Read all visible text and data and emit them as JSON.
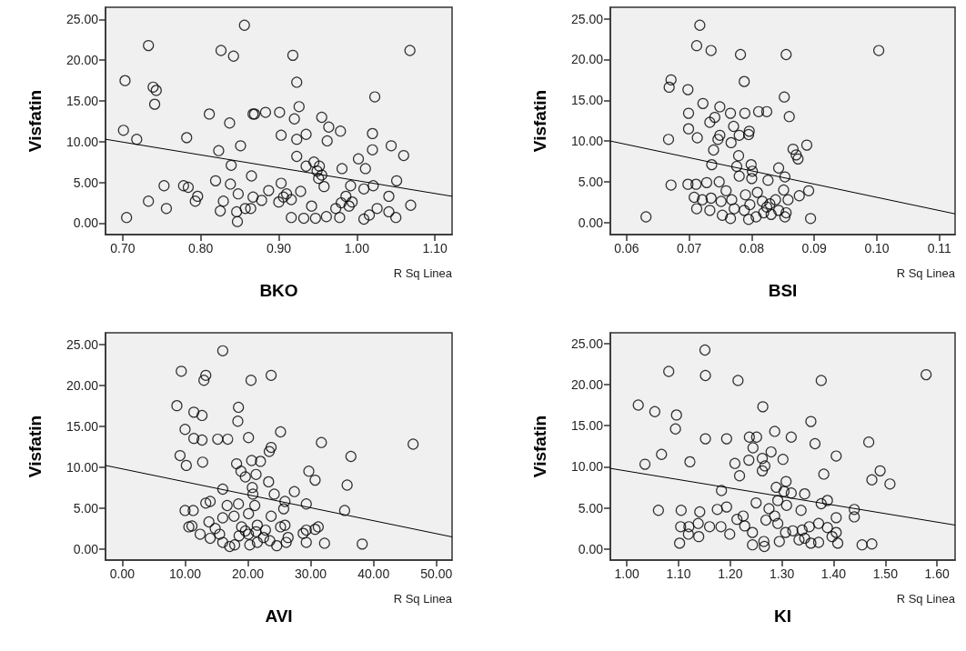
{
  "chart_data": [
    {
      "type": "scatter",
      "xlabel": "BKO",
      "ylabel": "Visfatin",
      "xlim": [
        0.678,
        1.122
      ],
      "ylim": [
        -1.4,
        26.5
      ],
      "marker": "circle",
      "grid": false,
      "annotations": [
        "R Sq Linea"
      ],
      "xticks": [
        {
          "value": 0.7,
          "label": "0.70"
        },
        {
          "value": 0.8,
          "label": "0.80"
        },
        {
          "value": 0.9,
          "label": "0.90"
        },
        {
          "value": 1.0,
          "label": "1.00"
        },
        {
          "value": 1.1,
          "label": "1.10"
        }
      ],
      "yticks": [
        {
          "value": 0,
          "label": "0.00"
        },
        {
          "value": 5,
          "label": "5.00"
        },
        {
          "value": 10,
          "label": "10.00"
        },
        {
          "value": 15,
          "label": "15.00"
        },
        {
          "value": 20,
          "label": "20.00"
        },
        {
          "value": 25,
          "label": "25.00"
        }
      ],
      "series": [
        {
          "color": "#000000",
          "x": [
            0.856,
            0.733,
            0.826,
            0.842,
            0.918,
            1.068,
            0.703,
            0.739,
            0.743,
            0.741,
            0.923,
            1.023,
            0.926,
            0.811,
            0.867,
            0.869,
            0.883,
            0.901,
            0.92,
            0.837,
            0.955,
            0.964,
            0.979,
            0.701,
            0.718,
            0.782,
            0.903,
            0.923,
            0.935,
            0.962,
            1.02,
            1.02,
            1.044,
            1.06,
            0.823,
            0.851,
            0.923,
            0.839,
            0.935,
            0.945,
            0.952,
            0.949,
            0.955,
            0.951,
            0.981,
            1.002,
            1.011,
            0.865,
            0.753,
            0.778,
            0.784,
            0.796,
            0.819,
            0.838,
            0.903,
            0.958,
            0.992,
            1.021,
            1.051,
            0.733,
            0.756,
            0.705,
            0.793,
            0.829,
            0.848,
            0.867,
            0.878,
            0.887,
            0.825,
            0.846,
            0.847,
            0.857,
            0.864,
            0.9,
            0.91,
            0.916,
            0.928,
            0.916,
            0.932,
            0.942,
            0.947,
            0.961,
            0.973,
            0.978,
            0.986,
            0.994,
            0.99,
            1.009,
            1.009,
            1.016,
            1.026,
            1.041,
            1.041,
            1.05,
            1.069,
            0.906,
            0.98
          ],
          "values": [
            24.3,
            21.8,
            21.2,
            20.5,
            20.6,
            21.2,
            17.5,
            16.7,
            16.3,
            14.6,
            17.3,
            15.5,
            14.3,
            13.4,
            13.4,
            13.4,
            13.6,
            13.6,
            12.8,
            12.3,
            13.0,
            11.8,
            11.3,
            11.4,
            10.3,
            10.5,
            10.8,
            10.3,
            10.9,
            10.1,
            11.0,
            9.0,
            9.5,
            8.3,
            8.9,
            9.5,
            8.2,
            7.1,
            7.0,
            7.5,
            7.0,
            6.4,
            5.9,
            5.5,
            6.7,
            7.9,
            6.7,
            5.8,
            4.6,
            4.6,
            4.4,
            3.3,
            5.2,
            4.8,
            4.9,
            4.5,
            4.6,
            4.6,
            5.2,
            2.7,
            1.8,
            0.7,
            2.7,
            2.7,
            3.6,
            3.2,
            2.8,
            4.0,
            1.5,
            1.4,
            0.2,
            1.8,
            1.8,
            2.6,
            3.6,
            2.9,
            3.9,
            0.7,
            0.6,
            2.1,
            0.6,
            0.8,
            1.8,
            0.7,
            3.3,
            2.6,
            2.1,
            0.5,
            4.2,
            1.0,
            1.8,
            3.3,
            1.4,
            0.7,
            2.2,
            3.2,
            2.5
          ]
        },
        {
          "type": "line",
          "color": "#000000",
          "marker": "none",
          "x": [
            0.678,
            1.122
          ],
          "values": [
            10.3,
            3.3
          ]
        }
      ]
    },
    {
      "type": "scatter",
      "xlabel": "BSI",
      "ylabel": "Visfatin",
      "xlim": [
        0.0574,
        0.1125
      ],
      "ylim": [
        -1.47,
        26.4
      ],
      "marker": "circle",
      "grid": false,
      "annotations": [
        "R Sq Linea"
      ],
      "xticks": [
        {
          "value": 0.06,
          "label": "0.06"
        },
        {
          "value": 0.07,
          "label": "0.07"
        },
        {
          "value": 0.08,
          "label": "0.08"
        },
        {
          "value": 0.09,
          "label": "0.09"
        },
        {
          "value": 0.1,
          "label": "0.10"
        },
        {
          "value": 0.11,
          "label": "0.11"
        }
      ],
      "yticks": [
        {
          "value": 0,
          "label": "0.00"
        },
        {
          "value": 5,
          "label": "5.00"
        },
        {
          "value": 10,
          "label": "10.00"
        },
        {
          "value": 15,
          "label": "15.00"
        },
        {
          "value": 20,
          "label": "20.00"
        },
        {
          "value": 25,
          "label": "25.00"
        }
      ],
      "series": [
        {
          "color": "#000000",
          "x": [
            0.0717,
            0.0712,
            0.0735,
            0.0782,
            0.0855,
            0.1003,
            0.0671,
            0.0668,
            0.0698,
            0.0722,
            0.0749,
            0.0788,
            0.0852,
            0.086,
            0.0699,
            0.0766,
            0.0789,
            0.0811,
            0.0824,
            0.0741,
            0.0733,
            0.0771,
            0.0699,
            0.0713,
            0.0667,
            0.0749,
            0.0746,
            0.078,
            0.0796,
            0.0795,
            0.0767,
            0.0739,
            0.0866,
            0.0888,
            0.0871,
            0.0874,
            0.0779,
            0.0736,
            0.0776,
            0.0799,
            0.0801,
            0.0843,
            0.0671,
            0.0698,
            0.0711,
            0.0728,
            0.0748,
            0.078,
            0.08,
            0.0826,
            0.0853,
            0.0851,
            0.0876,
            0.0891,
            0.0708,
            0.0721,
            0.0735,
            0.0751,
            0.0759,
            0.0768,
            0.079,
            0.0809,
            0.0817,
            0.0829,
            0.0838,
            0.0858,
            0.0712,
            0.0733,
            0.0753,
            0.0766,
            0.0772,
            0.0788,
            0.0795,
            0.0807,
            0.0819,
            0.0831,
            0.0843,
            0.0853,
            0.0855,
            0.0631,
            0.0894,
            0.0797,
            0.0824
          ],
          "values": [
            24.2,
            21.7,
            21.1,
            20.6,
            20.6,
            21.1,
            17.5,
            16.6,
            16.3,
            14.6,
            14.2,
            17.3,
            15.4,
            13.0,
            13.4,
            13.4,
            13.4,
            13.6,
            13.6,
            12.9,
            12.3,
            11.8,
            11.5,
            10.4,
            10.2,
            10.7,
            10.2,
            10.7,
            11.2,
            10.8,
            9.8,
            8.9,
            9.0,
            9.5,
            8.3,
            7.8,
            8.2,
            7.1,
            6.9,
            7.1,
            6.3,
            6.7,
            4.6,
            4.7,
            4.7,
            4.9,
            5.0,
            5.7,
            5.4,
            5.2,
            5.6,
            4.0,
            3.3,
            3.9,
            3.1,
            2.8,
            3.0,
            2.6,
            3.9,
            2.8,
            3.4,
            3.7,
            2.6,
            2.3,
            2.8,
            2.8,
            1.7,
            1.5,
            0.9,
            0.5,
            1.7,
            1.5,
            0.4,
            0.7,
            1.2,
            1.0,
            1.5,
            0.7,
            1.2,
            0.7,
            0.5,
            2.2,
            1.9
          ]
        },
        {
          "type": "line",
          "color": "#000000",
          "marker": "none",
          "x": [
            0.0574,
            0.1125
          ],
          "values": [
            10.0,
            1.07
          ]
        }
      ]
    },
    {
      "type": "scatter",
      "xlabel": "AVI",
      "ylabel": "Visfatin",
      "xlim": [
        -2.66,
        52.5
      ],
      "ylim": [
        -1.36,
        26.4
      ],
      "marker": "circle",
      "grid": false,
      "annotations": [
        "R Sq Linea"
      ],
      "xticks": [
        {
          "value": 0,
          "label": "0.00"
        },
        {
          "value": 10,
          "label": "10.00"
        },
        {
          "value": 20,
          "label": "20.00"
        },
        {
          "value": 30,
          "label": "30.00"
        },
        {
          "value": 40,
          "label": "40.00"
        },
        {
          "value": 50,
          "label": "50.00"
        }
      ],
      "yticks": [
        {
          "value": 0,
          "label": "0.00"
        },
        {
          "value": 5,
          "label": "5.00"
        },
        {
          "value": 10,
          "label": "10.00"
        },
        {
          "value": 15,
          "label": "15.00"
        },
        {
          "value": 20,
          "label": "20.00"
        },
        {
          "value": 25,
          "label": "25.00"
        }
      ],
      "series": [
        {
          "color": "#000000",
          "x": [
            16.0,
            9.4,
            13.3,
            13.0,
            20.5,
            23.7,
            8.7,
            11.4,
            12.7,
            18.5,
            18.4,
            10.0,
            11.4,
            12.7,
            15.2,
            16.8,
            20.1,
            25.2,
            31.7,
            46.3,
            9.2,
            10.2,
            12.8,
            18.2,
            20.6,
            22.0,
            23.4,
            23.7,
            36.4,
            29.7,
            30.7,
            35.8,
            18.9,
            19.6,
            21.3,
            23.3,
            16.0,
            20.7,
            20.8,
            24.2,
            27.4,
            25.9,
            29.3,
            35.4,
            10.0,
            11.3,
            13.3,
            14.0,
            16.7,
            18.5,
            21.1,
            25.7,
            10.6,
            11.1,
            13.8,
            14.8,
            16.0,
            17.8,
            19.0,
            20.1,
            21.5,
            22.8,
            23.7,
            25.2,
            25.9,
            28.8,
            29.3,
            30.7,
            31.2,
            12.4,
            14.0,
            15.5,
            16.0,
            17.1,
            17.9,
            18.6,
            19.6,
            20.3,
            21.5,
            22.5,
            23.5,
            24.6,
            26.1,
            26.4,
            29.3,
            32.2,
            38.2,
            20.1,
            21.3
          ],
          "values": [
            24.2,
            21.7,
            21.2,
            20.6,
            20.6,
            21.2,
            17.5,
            16.7,
            16.3,
            17.3,
            15.6,
            14.6,
            13.5,
            13.3,
            13.4,
            13.4,
            13.6,
            14.3,
            13.0,
            12.8,
            11.4,
            10.2,
            10.6,
            10.4,
            10.8,
            10.7,
            11.9,
            12.4,
            11.3,
            9.5,
            8.4,
            7.8,
            9.5,
            8.8,
            9.1,
            8.2,
            7.3,
            7.5,
            6.7,
            6.7,
            7.0,
            5.8,
            5.5,
            4.7,
            4.7,
            4.7,
            5.6,
            5.8,
            5.3,
            5.5,
            5.3,
            4.9,
            2.7,
            2.8,
            3.3,
            2.5,
            3.8,
            4.0,
            2.7,
            4.3,
            2.9,
            2.3,
            4.0,
            2.7,
            2.9,
            1.9,
            2.3,
            2.4,
            2.7,
            1.8,
            1.3,
            1.8,
            0.8,
            0.3,
            0.5,
            1.6,
            2.2,
            0.5,
            0.8,
            1.4,
            1.0,
            0.4,
            0.8,
            1.4,
            0.8,
            0.7,
            0.6,
            1.8,
            2.1
          ]
        },
        {
          "type": "line",
          "color": "#000000",
          "marker": "none",
          "x": [
            -2.66,
            52.5
          ],
          "values": [
            10.2,
            1.47
          ]
        }
      ]
    },
    {
      "type": "scatter",
      "xlabel": "KI",
      "ylabel": "Visfatin",
      "xlim": [
        0.968,
        1.635
      ],
      "ylim": [
        -1.36,
        26.3
      ],
      "marker": "circle",
      "grid": false,
      "annotations": [
        "R Sq Linea"
      ],
      "xticks": [
        {
          "value": 1.0,
          "label": "1.00"
        },
        {
          "value": 1.1,
          "label": "1.10"
        },
        {
          "value": 1.2,
          "label": "1.20"
        },
        {
          "value": 1.3,
          "label": "1.30"
        },
        {
          "value": 1.4,
          "label": "1.40"
        },
        {
          "value": 1.5,
          "label": "1.50"
        },
        {
          "value": 1.6,
          "label": "1.60"
        }
      ],
      "yticks": [
        {
          "value": 0,
          "label": "0.00"
        },
        {
          "value": 5,
          "label": "5.00"
        },
        {
          "value": 10,
          "label": "10.00"
        },
        {
          "value": 15,
          "label": "15.00"
        },
        {
          "value": 20,
          "label": "20.00"
        },
        {
          "value": 25,
          "label": "25.00"
        }
      ],
      "series": [
        {
          "color": "#000000",
          "x": [
            1.151,
            1.081,
            1.152,
            1.215,
            1.376,
            1.579,
            1.022,
            1.054,
            1.096,
            1.094,
            1.263,
            1.356,
            1.152,
            1.193,
            1.237,
            1.251,
            1.286,
            1.318,
            1.244,
            1.364,
            1.468,
            1.067,
            1.035,
            1.122,
            1.209,
            1.236,
            1.262,
            1.279,
            1.302,
            1.405,
            1.262,
            1.218,
            1.267,
            1.381,
            1.49,
            1.474,
            1.509,
            1.183,
            1.289,
            1.308,
            1.304,
            1.318,
            1.344,
            1.25,
            1.275,
            1.292,
            1.309,
            1.337,
            1.376,
            1.388,
            1.44,
            1.44,
            1.061,
            1.105,
            1.141,
            1.175,
            1.193,
            1.104,
            1.12,
            1.138,
            1.16,
            1.182,
            1.213,
            1.225,
            1.228,
            1.243,
            1.269,
            1.286,
            1.292,
            1.321,
            1.339,
            1.353,
            1.371,
            1.388,
            1.405,
            1.397,
            1.405,
            1.102,
            1.119,
            1.139,
            1.199,
            1.243,
            1.265,
            1.266,
            1.295,
            1.333,
            1.344,
            1.356,
            1.371,
            1.408,
            1.455,
            1.474,
            1.307
          ],
          "values": [
            24.2,
            21.6,
            21.1,
            20.5,
            20.5,
            21.2,
            17.5,
            16.7,
            16.3,
            14.6,
            17.3,
            15.5,
            13.4,
            13.4,
            13.6,
            13.6,
            14.3,
            13.6,
            12.3,
            12.8,
            13.0,
            11.5,
            10.3,
            10.6,
            10.4,
            10.8,
            11.0,
            11.8,
            10.9,
            11.3,
            9.5,
            8.9,
            10.1,
            9.1,
            9.5,
            8.4,
            7.9,
            7.1,
            7.5,
            8.2,
            7.0,
            6.8,
            6.7,
            5.6,
            4.9,
            5.9,
            5.3,
            4.7,
            5.5,
            5.9,
            4.8,
            3.9,
            4.7,
            4.7,
            4.5,
            4.8,
            5.1,
            2.7,
            2.7,
            3.1,
            2.7,
            2.7,
            3.6,
            4.0,
            2.8,
            2.0,
            3.5,
            4.0,
            3.1,
            2.2,
            2.3,
            2.7,
            3.1,
            2.6,
            3.8,
            1.5,
            2.0,
            0.7,
            1.8,
            1.5,
            1.8,
            0.5,
            0.9,
            0.3,
            0.9,
            1.1,
            1.3,
            0.7,
            0.8,
            0.7,
            0.5,
            0.6,
            2.0
          ]
        },
        {
          "type": "line",
          "color": "#000000",
          "marker": "none",
          "x": [
            0.968,
            1.635
          ],
          "values": [
            9.8,
            2.9
          ]
        }
      ]
    }
  ]
}
